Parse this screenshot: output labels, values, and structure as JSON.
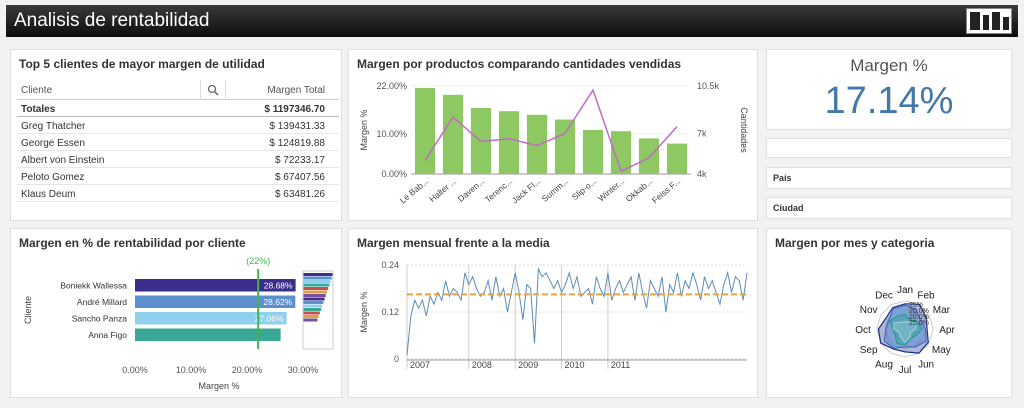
{
  "app": {
    "title": "Analisis de rentabilidad"
  },
  "clients_table": {
    "title": "Top 5 clientes de mayor margen de utilidad",
    "col_client": "Cliente",
    "col_margin": "Margen Total",
    "totals_label": "Totales",
    "totals_value": "$ 1197346.70",
    "rows": [
      {
        "client": "Greg Thatcher",
        "value": "$ 139431.33"
      },
      {
        "client": "George Essen",
        "value": "$ 124819.88"
      },
      {
        "client": "Albert von Einstein",
        "value": "$ 72233.17"
      },
      {
        "client": "Peloto Gomez",
        "value": "$ 67407.56"
      },
      {
        "client": "Klaus Deum",
        "value": "$ 63481.26"
      }
    ]
  },
  "kpi": {
    "label": "Margen %",
    "value": "17.14%"
  },
  "filters": {
    "pais": "País",
    "ciudad": "Ciudad"
  },
  "chart_data": [
    {
      "type": "bar",
      "title": "Margen por productos comparando cantidades vendidas",
      "categories": [
        "Le Bab...",
        "Halter ...",
        "Daven...",
        "Terenc...",
        "Jack Fl...",
        "Summ...",
        "Slip-o...",
        "Winter...",
        "Okkab...",
        "Feiss F..."
      ],
      "ylabel": "Margen %",
      "y2label": "Cantidades",
      "yticks": [
        "0.00%",
        "10.00%",
        "22.00%"
      ],
      "y2ticks": [
        "4k",
        "7k",
        "10.5k"
      ],
      "ylim": [
        0,
        22
      ],
      "y2lim": [
        4000,
        10500
      ],
      "series": [
        {
          "name": "Margen %",
          "type": "bar",
          "color": "#8dc863",
          "values": [
            21.5,
            19.8,
            16.5,
            15.7,
            14.8,
            13.6,
            11.0,
            10.7,
            8.9,
            7.6
          ]
        },
        {
          "name": "Cantidades",
          "type": "line",
          "color": "#c36ac8",
          "values": [
            5000,
            8200,
            6400,
            6600,
            6100,
            7000,
            10200,
            4200,
            5200,
            7500
          ]
        }
      ]
    },
    {
      "type": "bar",
      "title": "Margen en % de rentabilidad por cliente",
      "categories": [
        "Boniekk Wallessa",
        "André Millard",
        "Sancho Panza",
        "Anna Figo"
      ],
      "values": [
        28.68,
        28.62,
        27.06,
        26.0
      ],
      "labels": [
        "28.68%",
        "28.62%",
        "27.06%",
        ""
      ],
      "colors": [
        "#3a2d8c",
        "#5c8fce",
        "#8fd0ec",
        "#3aa896"
      ],
      "xlabel": "Margen %",
      "ylabel": "Cliente",
      "xticks": [
        "0.00%",
        "10.00%",
        "20.00%",
        "30.00%"
      ],
      "xlim": [
        0,
        30
      ],
      "reference": {
        "label": "(22%)",
        "value": 22
      }
    },
    {
      "type": "line",
      "title": "Margen mensual frente a la media",
      "ylabel": "Margen %",
      "yticks": [
        "0",
        "0.12",
        "0.24"
      ],
      "ylim": [
        0,
        0.24
      ],
      "x_labels": [
        "2007",
        "2008",
        "2009",
        "2010",
        "2011"
      ],
      "average": 0.165,
      "values": [
        0.01,
        0.11,
        0.15,
        0.13,
        0.15,
        0.11,
        0.16,
        0.14,
        0.17,
        0.15,
        0.2,
        0.16,
        0.18,
        0.17,
        0.15,
        0.22,
        0.19,
        0.21,
        0.18,
        0.16,
        0.17,
        0.2,
        0.15,
        0.21,
        0.16,
        0.18,
        0.12,
        0.17,
        0.22,
        0.17,
        0.1,
        0.19,
        0.18,
        0.04,
        0.23,
        0.21,
        0.22,
        0.2,
        0.18,
        0.2,
        0.17,
        0.19,
        0.22,
        0.18,
        0.21,
        0.16,
        0.17,
        0.18,
        0.14,
        0.21,
        0.18,
        0.16,
        0.22,
        0.15,
        0.18,
        0.2,
        0.17,
        0.19,
        0.21,
        0.15,
        0.22,
        0.17,
        0.13,
        0.2,
        0.18,
        0.16,
        0.21,
        0.12,
        0.19,
        0.17,
        0.22,
        0.16,
        0.2,
        0.18,
        0.22,
        0.19,
        0.15,
        0.21,
        0.18,
        0.2,
        0.17,
        0.14,
        0.19,
        0.22,
        0.17,
        0.21,
        0.2,
        0.15,
        0.22
      ]
    },
    {
      "type": "radar",
      "title": "Margen por mes y categoria",
      "months": [
        "Jan",
        "Feb",
        "Mar",
        "Apr",
        "May",
        "Jun",
        "Jul",
        "Aug",
        "Sep",
        "Oct",
        "Nov",
        "Dec"
      ],
      "ring_labels": [
        "25%",
        "20.0%",
        "20.0%",
        "25.0%"
      ],
      "series_colors": [
        "#1d2f8c",
        "#3f6fc0",
        "#6ea8dd",
        "#2a9d8f",
        "#8fd3d8"
      ]
    }
  ],
  "colors": {
    "bar_green": "#8dc863",
    "line_purple": "#c36ac8",
    "kpi_blue": "#4477aa",
    "avg_line": "#e6a23c",
    "ref_line": "#3fb54a"
  }
}
